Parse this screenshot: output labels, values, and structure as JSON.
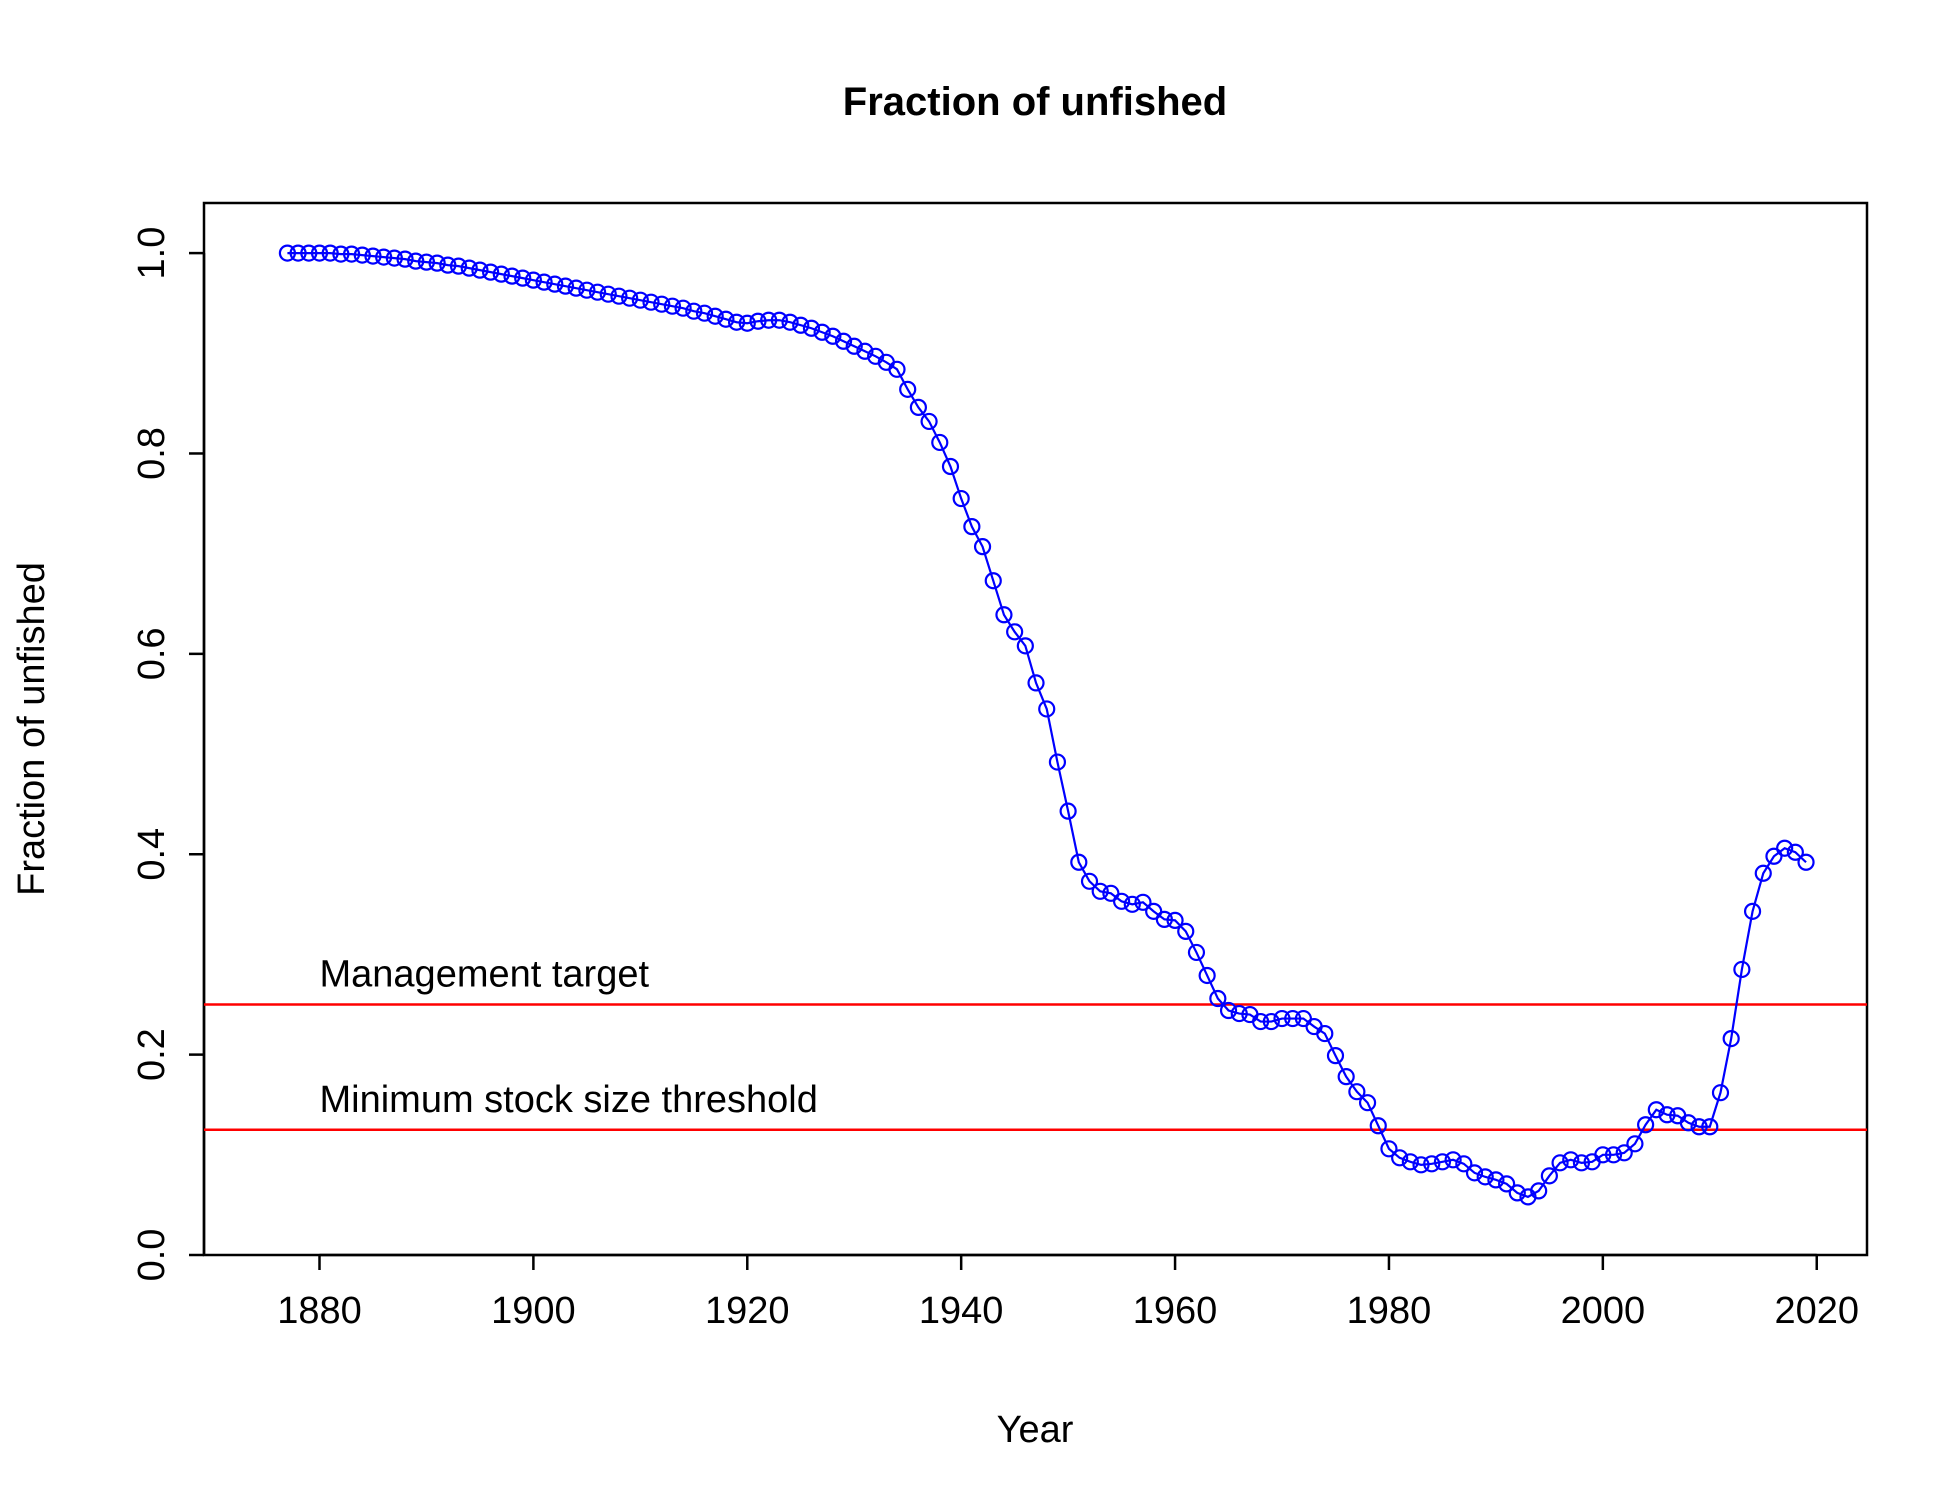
{
  "chart_data": {
    "type": "line",
    "title": "Fraction of unfished",
    "x_label": "Year",
    "y_label": "Fraction of unfished",
    "x": [
      1877,
      1878,
      1879,
      1880,
      1881,
      1882,
      1883,
      1884,
      1885,
      1886,
      1887,
      1888,
      1889,
      1890,
      1891,
      1892,
      1893,
      1894,
      1895,
      1896,
      1897,
      1898,
      1899,
      1900,
      1901,
      1902,
      1903,
      1904,
      1905,
      1906,
      1907,
      1908,
      1909,
      1910,
      1911,
      1912,
      1913,
      1914,
      1915,
      1916,
      1917,
      1918,
      1919,
      1920,
      1921,
      1922,
      1923,
      1924,
      1925,
      1926,
      1927,
      1928,
      1929,
      1930,
      1931,
      1932,
      1933,
      1934,
      1935,
      1936,
      1937,
      1938,
      1939,
      1940,
      1941,
      1942,
      1943,
      1944,
      1945,
      1946,
      1947,
      1948,
      1949,
      1950,
      1951,
      1952,
      1953,
      1954,
      1955,
      1956,
      1957,
      1958,
      1959,
      1960,
      1961,
      1962,
      1963,
      1964,
      1965,
      1966,
      1967,
      1968,
      1969,
      1970,
      1971,
      1972,
      1973,
      1974,
      1975,
      1976,
      1977,
      1978,
      1979,
      1980,
      1981,
      1982,
      1983,
      1984,
      1985,
      1986,
      1987,
      1988,
      1989,
      1990,
      1991,
      1992,
      1993,
      1994,
      1995,
      1996,
      1997,
      1998,
      1999,
      2000,
      2001,
      2002,
      2003,
      2004,
      2005,
      2006,
      2007,
      2008,
      2009,
      2010,
      2011,
      2012,
      2013,
      2014,
      2015,
      2016,
      2017,
      2018,
      2019
    ],
    "series": [
      {
        "color": "#0000ff",
        "values": [
          1.0,
          1.0,
          1.0,
          1.0,
          1.0,
          0.999,
          0.999,
          0.998,
          0.997,
          0.996,
          0.995,
          0.994,
          0.992,
          0.991,
          0.99,
          0.988,
          0.987,
          0.985,
          0.983,
          0.981,
          0.979,
          0.977,
          0.975,
          0.973,
          0.971,
          0.969,
          0.967,
          0.965,
          0.963,
          0.961,
          0.959,
          0.957,
          0.955,
          0.953,
          0.951,
          0.949,
          0.947,
          0.945,
          0.942,
          0.94,
          0.937,
          0.934,
          0.931,
          0.93,
          0.932,
          0.933,
          0.933,
          0.931,
          0.928,
          0.925,
          0.921,
          0.917,
          0.912,
          0.907,
          0.902,
          0.897,
          0.891,
          0.884,
          0.864,
          0.846,
          0.832,
          0.811,
          0.787,
          0.755,
          0.727,
          0.707,
          0.673,
          0.639,
          0.622,
          0.608,
          0.571,
          0.545,
          0.492,
          0.443,
          0.392,
          0.373,
          0.363,
          0.361,
          0.353,
          0.35,
          0.352,
          0.343,
          0.335,
          0.334,
          0.323,
          0.302,
          0.279,
          0.256,
          0.244,
          0.241,
          0.24,
          0.233,
          0.233,
          0.236,
          0.236,
          0.236,
          0.228,
          0.221,
          0.199,
          0.178,
          0.163,
          0.152,
          0.129,
          0.106,
          0.097,
          0.093,
          0.09,
          0.091,
          0.093,
          0.095,
          0.091,
          0.082,
          0.078,
          0.075,
          0.071,
          0.062,
          0.058,
          0.064,
          0.079,
          0.092,
          0.095,
          0.092,
          0.093,
          0.1,
          0.1,
          0.102,
          0.111,
          0.13,
          0.145,
          0.14,
          0.139,
          0.132,
          0.128,
          0.128,
          0.162,
          0.216,
          0.285,
          0.343,
          0.381,
          0.398,
          0.406,
          0.402,
          0.392
        ]
      }
    ],
    "hlines": [
      {
        "value": 0.25,
        "label": "Management target",
        "color": "#ff0000"
      },
      {
        "value": 0.125,
        "label": "Minimum stock size threshold",
        "color": "#ff0000"
      }
    ],
    "xlim": [
      1869.2,
      2024.7
    ],
    "xticks": [
      1880,
      1900,
      1920,
      1940,
      1960,
      1980,
      2000,
      2020
    ],
    "ylim": [
      0,
      1.05
    ],
    "yticks": [
      {
        "value": 0,
        "label": "0.0"
      },
      0.2,
      0.4,
      0.6,
      0.8,
      {
        "value": 1,
        "label": "1.0"
      }
    ]
  }
}
